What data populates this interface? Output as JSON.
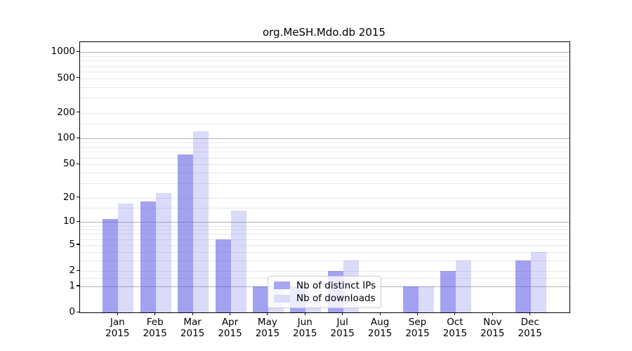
{
  "title": "org.MeSH.Mdo.db 2015",
  "colors": {
    "ips_bar": "rgba(85,85,230,0.55)",
    "downloads_bar": "rgba(120,120,235,0.27)",
    "ips_flat": "#a6a6f2",
    "downloads_flat": "#dbdbfa",
    "grid_major": "#b0b0b0",
    "grid_minor": "#e8e8e8",
    "axis": "#000000",
    "legend_border": "#cccccc"
  },
  "legend": {
    "items": [
      {
        "label": "Nb of distinct IPs",
        "color_key": "ips_flat"
      },
      {
        "label": "Nb of downloads",
        "color_key": "downloads_flat"
      }
    ]
  },
  "chart_data": {
    "type": "bar",
    "title": "org.MeSH.Mdo.db 2015",
    "categories": [
      "Jan",
      "Feb",
      "Mar",
      "Apr",
      "May",
      "Jun",
      "Jul",
      "Aug",
      "Sep",
      "Oct",
      "Nov",
      "Dec"
    ],
    "year_label": "2015",
    "series": [
      {
        "name": "Nb of distinct IPs",
        "values": [
          11,
          18,
          65,
          6,
          1,
          1,
          2,
          0,
          1,
          2,
          0,
          3
        ]
      },
      {
        "name": "Nb of downloads",
        "values": [
          17,
          23,
          122,
          14,
          1,
          1,
          3,
          0,
          1,
          3,
          0,
          4
        ]
      }
    ],
    "y_ticks": [
      0,
      1,
      2,
      5,
      10,
      20,
      50,
      100,
      200,
      500,
      1000
    ],
    "y_minor_gridlines": [
      1.5,
      2,
      3,
      4,
      5,
      6,
      7,
      8,
      9,
      15,
      20,
      30,
      40,
      50,
      60,
      70,
      80,
      90,
      150,
      200,
      300,
      400,
      500,
      600,
      700,
      800,
      900
    ],
    "y_major_gridlines": [
      1,
      10,
      100,
      1000
    ],
    "y_scale": "log10(1+v)",
    "ylim": [
      0,
      1000
    ],
    "grid": true,
    "legend_position": "inside-bottom-center",
    "xlabel": "",
    "ylabel": ""
  }
}
